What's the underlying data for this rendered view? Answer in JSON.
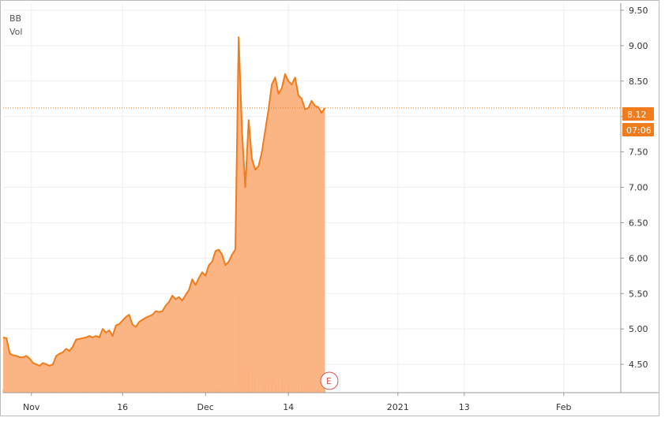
{
  "legend": {
    "symbol": "BB",
    "volume_label": "Vol"
  },
  "price_badge": {
    "price": "8.12",
    "time": "07:06"
  },
  "earnings_marker": {
    "label": "E"
  },
  "colors": {
    "line": "#f07c1b",
    "fill": "#fbb07d",
    "volume": "#f2a77a",
    "grid": "#eeeeee",
    "badge": "#f07c1b",
    "earnings": "#d9534f"
  },
  "chart_data": {
    "type": "area",
    "ylim": [
      4.1,
      9.6
    ],
    "y_ticks": [
      "9.50",
      "9.00",
      "8.50",
      "8.00",
      "7.50",
      "7.00",
      "6.50",
      "6.00",
      "5.50",
      "5.00",
      "4.50"
    ],
    "x_ticks": [
      {
        "label": "Nov",
        "i": 8.5
      },
      {
        "label": "16",
        "i": 36
      },
      {
        "label": "Dec",
        "i": 61
      },
      {
        "label": "14",
        "i": 86
      },
      {
        "label": "2021",
        "i": 119
      },
      {
        "label": "13",
        "i": 139
      },
      {
        "label": "Feb",
        "i": 169
      }
    ],
    "grid": true,
    "series": [
      {
        "values": [
          4.88,
          4.87,
          4.65,
          4.63,
          4.62,
          4.6,
          4.6,
          4.62,
          4.58,
          4.52,
          4.5,
          4.48,
          4.52,
          4.5,
          4.48,
          4.5,
          4.62,
          4.65,
          4.67,
          4.72,
          4.69,
          4.75,
          4.85,
          4.86,
          4.87,
          4.88,
          4.9,
          4.88,
          4.9,
          4.88,
          5.0,
          4.95,
          4.98,
          4.9,
          5.05,
          5.07,
          5.12,
          5.17,
          5.2,
          5.06,
          5.03,
          5.1,
          5.13,
          5.16,
          5.18,
          5.2,
          5.25,
          5.24,
          5.25,
          5.33,
          5.38,
          5.47,
          5.42,
          5.45,
          5.4,
          5.48,
          5.55,
          5.7,
          5.62,
          5.72,
          5.8,
          5.75,
          5.9,
          5.95,
          6.1,
          6.12,
          6.05,
          5.9,
          5.95,
          6.05,
          6.12,
          9.12,
          7.8,
          7.0,
          7.95,
          7.4,
          7.25,
          7.3,
          7.5,
          7.8,
          8.1,
          8.45,
          8.55,
          8.32,
          8.4,
          8.6,
          8.5,
          8.45,
          8.55,
          8.3,
          8.25,
          8.1,
          8.12,
          8.22,
          8.15,
          8.13,
          8.05,
          8.12
        ]
      },
      {
        "values": [
          0.05,
          0.03,
          0.02,
          0.03,
          0.02,
          0.02,
          0.03,
          0.02,
          0.02,
          0.03,
          0.02,
          0.02,
          0.02,
          0.03,
          0.02,
          0.02,
          0.03,
          0.02,
          0.03,
          0.02,
          0.02,
          0.03,
          0.04,
          0.03,
          0.03,
          0.02,
          0.03,
          0.03,
          0.02,
          0.03,
          0.04,
          0.03,
          0.02,
          0.03,
          0.03,
          0.04,
          0.03,
          0.03,
          0.04,
          0.03,
          0.03,
          0.02,
          0.03,
          0.03,
          0.03,
          0.03,
          0.04,
          0.03,
          0.03,
          0.04,
          0.05,
          0.06,
          0.04,
          0.04,
          0.04,
          0.05,
          0.05,
          0.06,
          0.05,
          0.05,
          0.06,
          0.05,
          0.06,
          0.05,
          0.07,
          0.08,
          0.06,
          0.06,
          0.05,
          0.06,
          0.07,
          1.45,
          0.85,
          0.7,
          0.35,
          0.3,
          0.22,
          0.2,
          0.18,
          0.15,
          0.2,
          0.25,
          0.18,
          0.15,
          0.2,
          0.16,
          0.18,
          0.14,
          0.12,
          0.1,
          0.12,
          0.1,
          0.08,
          0.09,
          0.08,
          0.07,
          0.06,
          0.05
        ]
      }
    ]
  }
}
